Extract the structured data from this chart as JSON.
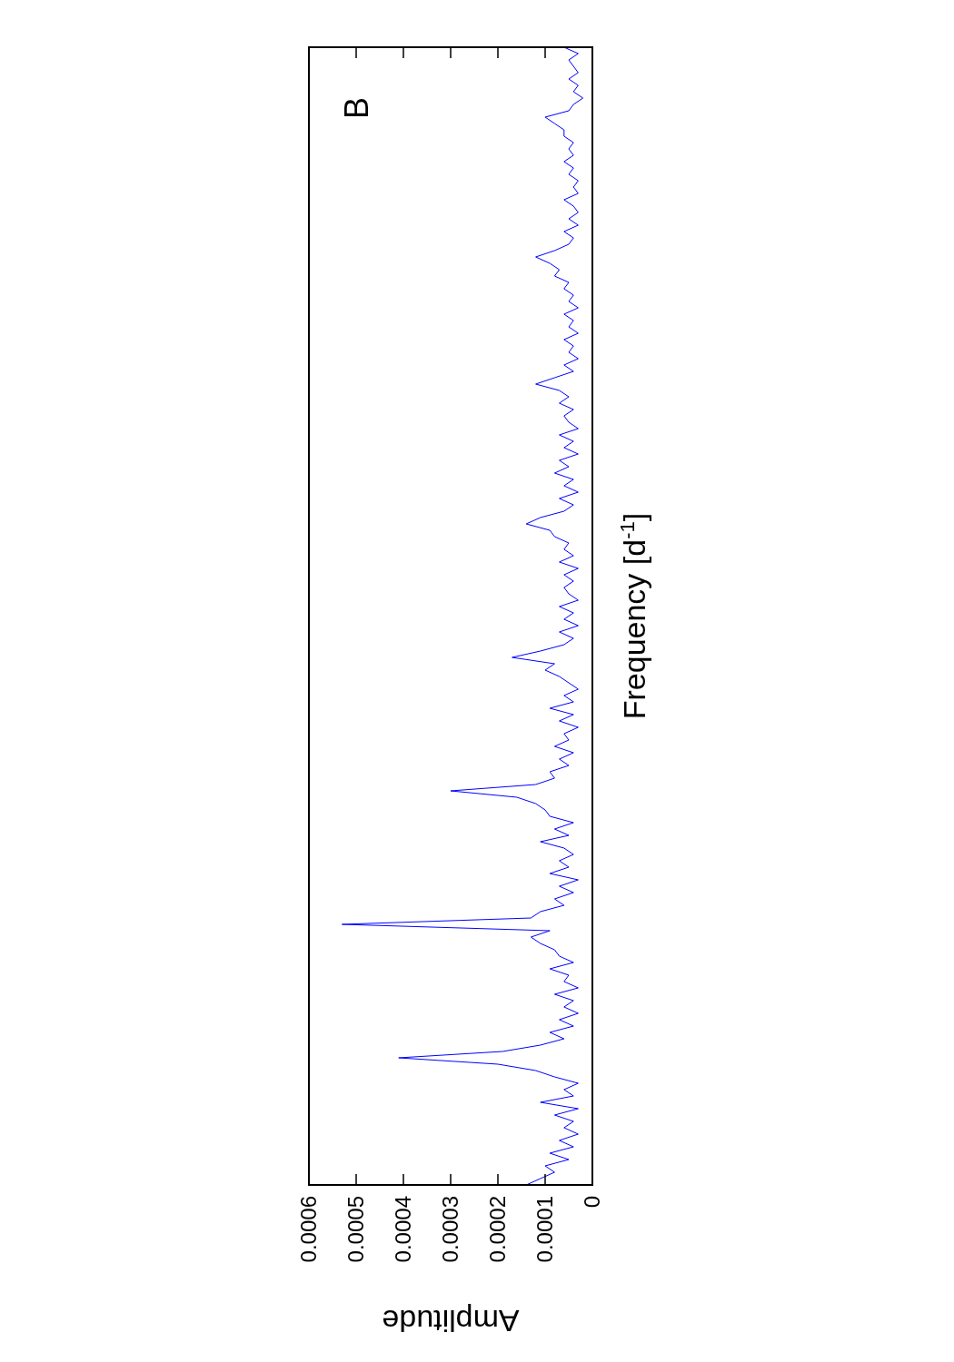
{
  "chart_data": {
    "type": "line",
    "orientation": "horizontal",
    "xlabel": "Amplitude",
    "ylabel": "Frequency [d$^{-1}$]",
    "annotations": [
      "B"
    ],
    "categories": [
      null,
      null,
      null,
      null,
      null,
      null,
      null,
      null,
      null,
      null,
      null,
      null,
      null,
      null,
      null,
      null,
      null,
      null,
      null,
      null,
      null,
      null,
      null,
      null,
      null,
      null,
      null,
      null,
      null,
      null,
      null,
      null,
      null,
      null,
      null,
      null,
      null,
      null,
      null,
      null,
      null,
      null,
      null,
      null,
      null,
      null,
      null,
      null,
      null,
      null,
      null,
      null,
      null,
      null,
      null,
      null,
      null,
      null,
      null,
      null,
      null,
      null,
      null,
      null,
      null,
      null,
      null,
      null,
      null,
      null,
      null,
      null,
      null,
      null,
      null,
      null,
      null,
      null,
      null,
      null,
      null,
      null,
      null,
      null,
      null,
      null,
      null,
      null,
      null,
      null,
      null,
      null,
      null,
      null,
      null,
      null,
      null,
      null,
      null,
      null,
      null,
      null,
      null,
      null,
      null,
      null,
      null,
      null,
      null,
      null,
      null,
      null,
      null,
      null,
      null,
      null,
      null,
      null,
      null,
      null,
      null,
      null,
      null,
      null,
      null,
      null,
      null,
      null,
      null,
      null,
      null,
      null,
      null,
      null,
      null,
      null,
      null,
      null,
      null,
      null,
      null,
      null,
      null,
      null,
      null,
      null,
      null,
      null,
      null,
      null,
      null,
      null,
      null,
      null,
      null,
      null,
      null,
      null,
      null,
      null,
      null,
      null,
      null,
      null,
      null,
      null,
      null,
      null,
      null,
      null,
      null,
      null,
      null,
      null,
      null,
      null,
      null,
      null,
      null,
      null
    ],
    "series": [
      {
        "color": "#0000ff",
        "values": [
          6e-05,
          3e-05,
          5e-05,
          4e-05,
          3e-05,
          5e-05,
          3e-05,
          4e-05,
          2e-05,
          4e-05,
          5e-05,
          0.0001,
          8e-05,
          6e-05,
          6e-05,
          4e-05,
          5e-05,
          4e-05,
          6e-05,
          4e-05,
          5e-05,
          3e-05,
          4e-05,
          3e-05,
          6e-05,
          4e-05,
          3e-05,
          5e-05,
          3e-05,
          6e-05,
          4e-05,
          5e-05,
          8e-05,
          0.00012,
          9e-05,
          7e-05,
          8e-05,
          5e-05,
          6e-05,
          4e-05,
          5e-05,
          3e-05,
          6e-05,
          4e-05,
          5e-05,
          3e-05,
          6e-05,
          4e-05,
          5e-05,
          3e-05,
          6e-05,
          4e-05,
          8e-05,
          0.00012,
          7e-05,
          5e-05,
          7e-05,
          4e-05,
          6e-05,
          5e-05,
          3e-05,
          7e-05,
          4e-05,
          6e-05,
          3e-05,
          7e-05,
          5e-05,
          8e-05,
          4e-05,
          6e-05,
          3e-05,
          7e-05,
          4e-05,
          6e-05,
          0.00011,
          0.00014,
          9e-05,
          8e-05,
          5e-05,
          6e-05,
          4e-05,
          7e-05,
          3e-05,
          6e-05,
          4e-05,
          6e-05,
          5e-05,
          3e-05,
          7e-05,
          4e-05,
          6e-05,
          3e-05,
          7e-05,
          4e-05,
          6e-05,
          0.00011,
          0.00017,
          8e-05,
          0.0001,
          7e-05,
          5e-05,
          3e-05,
          6e-05,
          4e-05,
          9e-05,
          4e-05,
          7e-05,
          3e-05,
          6e-05,
          5e-05,
          8e-05,
          4e-05,
          7e-05,
          5e-05,
          9e-05,
          8e-05,
          0.00012,
          0.0003,
          0.00016,
          0.00012,
          0.0001,
          9e-05,
          4e-05,
          8e-05,
          5e-05,
          0.00011,
          6e-05,
          4e-05,
          7e-05,
          5e-05,
          9e-05,
          3e-05,
          7e-05,
          4e-05,
          8e-05,
          6e-05,
          0.00011,
          0.00013,
          0.00053,
          9e-05,
          0.00013,
          0.00011,
          8e-05,
          7e-05,
          4e-05,
          9e-05,
          5e-05,
          6e-05,
          3e-05,
          8e-05,
          4e-05,
          6e-05,
          3e-05,
          7e-05,
          4e-05,
          9e-05,
          6e-05,
          0.00011,
          0.00019,
          0.00041,
          0.0002,
          0.00012,
          8e-05,
          3e-05,
          6e-05,
          4e-05,
          0.00011,
          3e-05,
          8e-05,
          4e-05,
          6e-05,
          3e-05,
          7e-05,
          4e-05,
          9e-05,
          5e-05,
          0.0001,
          8e-05,
          0.00011,
          0.00014
        ]
      }
    ],
    "xlim": [
      0.0006,
      0
    ],
    "xticks": [
      0.0006,
      0.0005,
      0.0004,
      0.0003,
      0.0002,
      0.0001,
      0
    ],
    "tick_labels": "x",
    "grid": false,
    "marker": "none",
    "line_style": "solid"
  }
}
